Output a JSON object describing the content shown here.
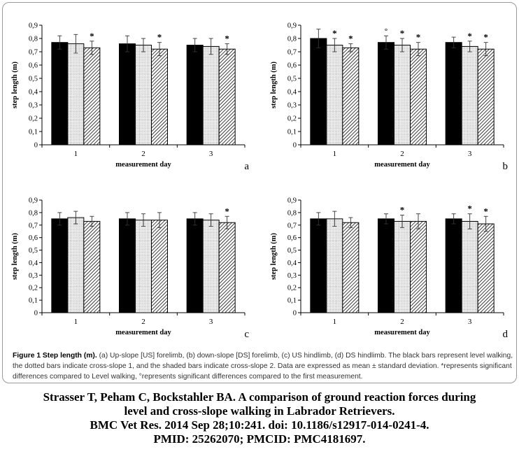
{
  "chart_data": [
    {
      "type": "bar",
      "panel_label": "a",
      "categories": [
        "1",
        "2",
        "3"
      ],
      "xlabel": "measurement day",
      "ylabel": "step length (m)",
      "ylim": [
        0,
        0.9
      ],
      "yticks": [
        "0",
        "0,1",
        "0,2",
        "0,3",
        "0,4",
        "0,5",
        "0,6",
        "0,7",
        "0,8",
        "0,9"
      ],
      "series": [
        {
          "values": [
            0.77,
            0.76,
            0.75
          ],
          "errors": [
            0.05,
            0.06,
            0.05
          ],
          "fill": "black"
        },
        {
          "values": [
            0.76,
            0.75,
            0.74
          ],
          "errors": [
            0.07,
            0.05,
            0.06
          ],
          "fill": "dotted"
        },
        {
          "values": [
            0.73,
            0.72,
            0.72
          ],
          "errors": [
            0.05,
            0.05,
            0.04
          ],
          "fill": "hatched"
        }
      ],
      "markers": [
        {
          "category": 0,
          "series": 2,
          "symbol": "*"
        },
        {
          "category": 1,
          "series": 2,
          "symbol": "*"
        },
        {
          "category": 2,
          "series": 2,
          "symbol": "*"
        }
      ]
    },
    {
      "type": "bar",
      "panel_label": "b",
      "categories": [
        "1",
        "2",
        "3"
      ],
      "xlabel": "measurement day",
      "ylabel": "step length (m)",
      "ylim": [
        0,
        0.9
      ],
      "yticks": [
        "0",
        "0,1",
        "0,2",
        "0,3",
        "0,4",
        "0,5",
        "0,6",
        "0,7",
        "0,8",
        "0,9"
      ],
      "series": [
        {
          "values": [
            0.8,
            0.77,
            0.77
          ],
          "errors": [
            0.07,
            0.05,
            0.04
          ],
          "fill": "black"
        },
        {
          "values": [
            0.75,
            0.75,
            0.74
          ],
          "errors": [
            0.05,
            0.05,
            0.04
          ],
          "fill": "dotted"
        },
        {
          "values": [
            0.73,
            0.72,
            0.72
          ],
          "errors": [
            0.03,
            0.05,
            0.05
          ],
          "fill": "hatched"
        }
      ],
      "markers": [
        {
          "category": 0,
          "series": 1,
          "symbol": "*"
        },
        {
          "category": 0,
          "series": 2,
          "symbol": "*"
        },
        {
          "category": 1,
          "series": 0,
          "symbol": "°"
        },
        {
          "category": 1,
          "series": 1,
          "symbol": "*"
        },
        {
          "category": 1,
          "series": 2,
          "symbol": "*"
        },
        {
          "category": 2,
          "series": 1,
          "symbol": "*"
        },
        {
          "category": 2,
          "series": 2,
          "symbol": "*"
        }
      ]
    },
    {
      "type": "bar",
      "panel_label": "c",
      "categories": [
        "1",
        "2",
        "3"
      ],
      "xlabel": "measurement day",
      "ylabel": "step length (m)",
      "ylim": [
        0,
        0.9
      ],
      "yticks": [
        "0",
        "0,1",
        "0,2",
        "0,3",
        "0,4",
        "0,5",
        "0,6",
        "0,7",
        "0,8",
        "0,9"
      ],
      "series": [
        {
          "values": [
            0.75,
            0.75,
            0.75
          ],
          "errors": [
            0.05,
            0.05,
            0.05
          ],
          "fill": "black"
        },
        {
          "values": [
            0.76,
            0.74,
            0.74
          ],
          "errors": [
            0.05,
            0.05,
            0.05
          ],
          "fill": "dotted"
        },
        {
          "values": [
            0.73,
            0.74,
            0.72
          ],
          "errors": [
            0.04,
            0.06,
            0.05
          ],
          "fill": "hatched"
        }
      ],
      "markers": [
        {
          "category": 2,
          "series": 2,
          "symbol": "*"
        }
      ]
    },
    {
      "type": "bar",
      "panel_label": "d",
      "categories": [
        "1",
        "2",
        "3"
      ],
      "xlabel": "measurement day",
      "ylabel": "step length (m)",
      "ylim": [
        0,
        0.9
      ],
      "yticks": [
        "0",
        "0,1",
        "0,2",
        "0,3",
        "0,4",
        "0,5",
        "0,6",
        "0,7",
        "0,8",
        "0,9"
      ],
      "series": [
        {
          "values": [
            0.75,
            0.75,
            0.75
          ],
          "errors": [
            0.05,
            0.04,
            0.04
          ],
          "fill": "black"
        },
        {
          "values": [
            0.75,
            0.73,
            0.73
          ],
          "errors": [
            0.06,
            0.05,
            0.06
          ],
          "fill": "dotted"
        },
        {
          "values": [
            0.72,
            0.73,
            0.71
          ],
          "errors": [
            0.04,
            0.06,
            0.06
          ],
          "fill": "hatched"
        }
      ],
      "markers": [
        {
          "category": 1,
          "series": 1,
          "symbol": "*"
        },
        {
          "category": 2,
          "series": 1,
          "symbol": "*"
        },
        {
          "category": 2,
          "series": 2,
          "symbol": "*"
        }
      ]
    }
  ],
  "caption": {
    "heading": "Figure 1 Step length (m).",
    "text": " (a) Up-slope [US] forelimb, (b) down-slope [DS] forelimb, (c) US hindlimb, (d) DS hindlimb. The black bars represent level walking, the dotted bars indicate cross-slope 1, and the shaded bars indicate cross-slope 2. Data are expressed as mean ± standard deviation. *represents significant differences compared to Level walking, °represents significant differences compared to the first measurement."
  },
  "citation": {
    "line1": "Strasser T, Peham C, Bockstahler BA. A comparison of ground reaction forces during",
    "line2": "level and cross-slope walking in Labrador Retrievers.",
    "line3": "BMC Vet Res. 2014 Sep 28;10:241. doi: 10.1186/s12917-014-0241-4.",
    "line4": "PMID: 25262070; PMCID: PMC4181697."
  }
}
